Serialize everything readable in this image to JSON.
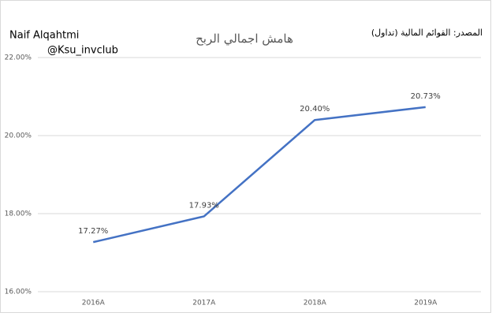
{
  "chart_data": {
    "type": "line",
    "title": "هامش اجمالي الربح",
    "author": "Naif Alqahtmi",
    "handle": "@Ksu_invclub",
    "source": "المصدر: القوائم المالية (تداول)",
    "categories": [
      "2016A",
      "2017A",
      "2018A",
      "2019A"
    ],
    "series": [
      {
        "name": "هامش اجمالي الربح",
        "color": "#4472c4",
        "values": [
          17.27,
          17.93,
          20.4,
          20.73
        ],
        "value_labels": [
          "17.27%",
          "17.93%",
          "20.40%",
          "20.73%"
        ]
      }
    ],
    "ylim": [
      16,
      22
    ],
    "yticks": [
      {
        "value": 16,
        "label": "16.00%"
      },
      {
        "value": 18,
        "label": "18.00%"
      },
      {
        "value": 20,
        "label": "20.00%"
      },
      {
        "value": 22,
        "label": "22.00%"
      }
    ],
    "grid": true
  }
}
